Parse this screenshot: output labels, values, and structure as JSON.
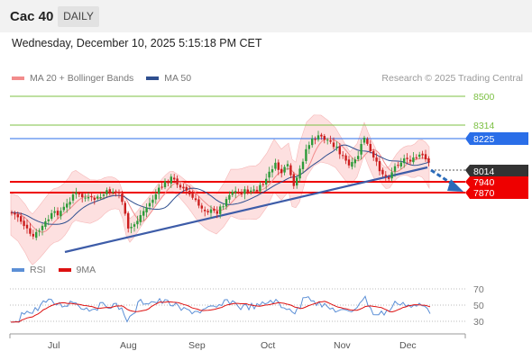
{
  "header": {
    "title": "Cac 40",
    "timeframe": "DAILY"
  },
  "datetime": "Wednesday, December 10, 2025 5:15:18 PM CET",
  "legend_main": [
    {
      "label": "MA 20 + Bollinger Bands",
      "color": "#f28c8c"
    },
    {
      "label": "MA 50",
      "color": "#2f4f8f"
    }
  ],
  "credit": "Research © 2025 Trading Central",
  "legend_rsi": [
    {
      "label": "RSI",
      "color": "#5b8fd6"
    },
    {
      "label": "9MA",
      "color": "#dd1111"
    }
  ],
  "price_levels": [
    {
      "value": "8500",
      "color": "#7cc043",
      "style": "line-label"
    },
    {
      "value": "8314",
      "color": "#7cc043",
      "style": "line-label"
    },
    {
      "value": "8225",
      "color": "#2a6ee8",
      "style": "box"
    },
    {
      "value": "8014",
      "color": "#333333",
      "style": "box"
    },
    {
      "value": "7940",
      "color": "#ee0000",
      "style": "box"
    },
    {
      "value": "7870",
      "color": "#ee0000",
      "style": "box"
    }
  ],
  "rsi_levels": [
    "70",
    "50",
    "30"
  ],
  "x_axis": [
    "Jul",
    "Aug",
    "Sep",
    "Oct",
    "Nov",
    "Dec"
  ],
  "colors": {
    "bullish": "#2e9b3a",
    "bearish": "#cc1f1f",
    "band_fill": "#fde0e0",
    "trendline": "#3d5ca8",
    "arrow": "#2a6ab8"
  },
  "chart_data": {
    "type": "candlestick",
    "series": [
      {
        "name": "MA 20 + Bollinger Bands"
      },
      {
        "name": "MA 50"
      }
    ],
    "horizontal_levels": [
      8500,
      8314,
      8225,
      8014,
      7940,
      7870
    ],
    "last_price": 8014,
    "trendline": "rising support",
    "projection": "down toward 7940"
  }
}
